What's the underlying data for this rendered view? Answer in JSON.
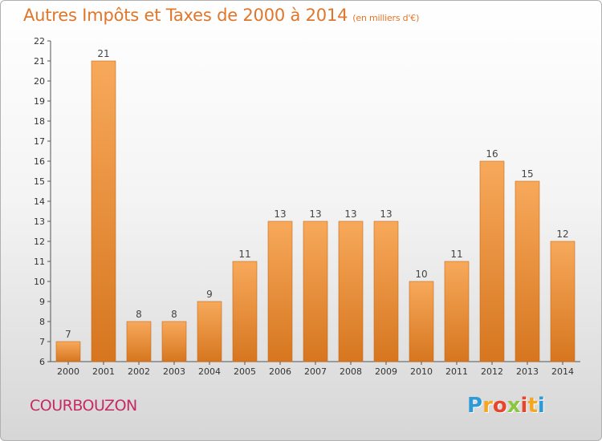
{
  "title": "Autres Impôts et Taxes de 2000 à 2014",
  "unit_note": "(en milliers d'€)",
  "commune": "COURBOUZON",
  "logo": {
    "letters": [
      "P",
      "r",
      "o",
      "x",
      "i",
      "t",
      "i"
    ],
    "colors": [
      "#2e9ad6",
      "#f5a623",
      "#e8452c",
      "#8cc63f",
      "#e8452c",
      "#f5a623",
      "#2e9ad6"
    ]
  },
  "colors": {
    "bar_top": "#f7a95b",
    "bar_bottom": "#d6761f",
    "bar_edge": "#c8691a"
  },
  "chart_data": {
    "type": "bar",
    "title": "Autres Impôts et Taxes de 2000 à 2014",
    "subtitle": "(en milliers d'€)",
    "categories": [
      "2000",
      "2001",
      "2002",
      "2003",
      "2004",
      "2005",
      "2006",
      "2007",
      "2008",
      "2009",
      "2010",
      "2011",
      "2012",
      "2013",
      "2014"
    ],
    "values": [
      7,
      21,
      8,
      8,
      9,
      11,
      13,
      13,
      13,
      13,
      10,
      11,
      16,
      15,
      12
    ],
    "ylim": [
      6,
      22
    ],
    "yticks": [
      6,
      7,
      8,
      9,
      10,
      11,
      12,
      13,
      14,
      15,
      16,
      17,
      18,
      19,
      20,
      21,
      22
    ],
    "xlabel": "",
    "ylabel": "",
    "grid": false
  }
}
